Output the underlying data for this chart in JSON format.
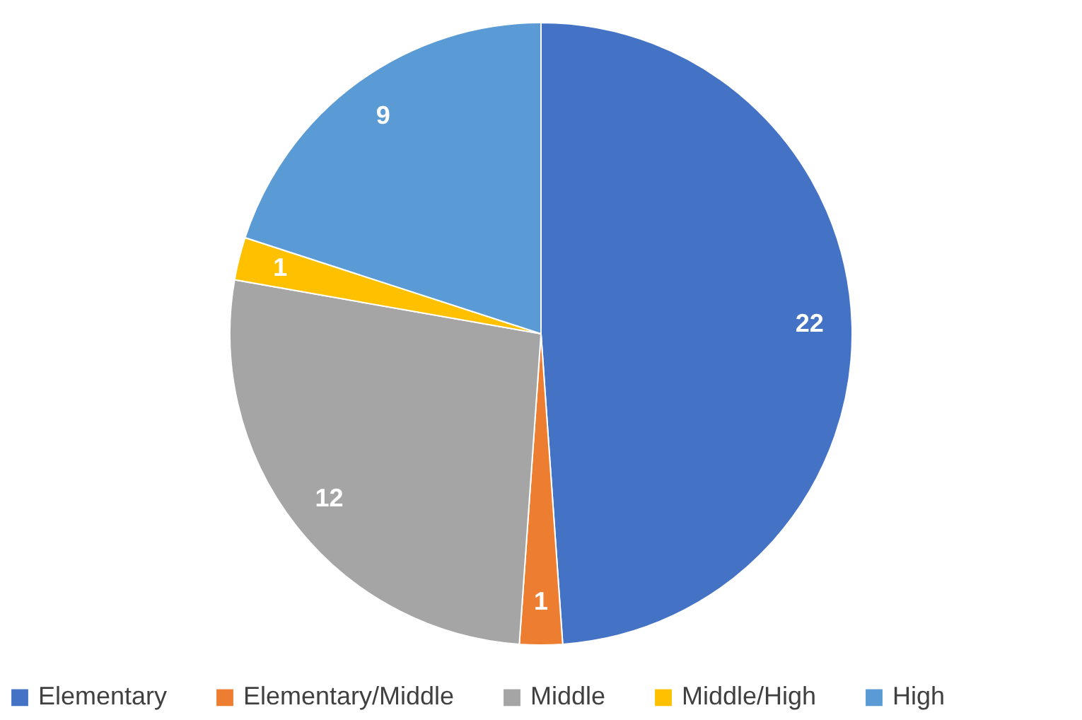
{
  "chart_data": {
    "type": "pie",
    "categories": [
      "Elementary",
      "Elementary/Middle",
      "Middle",
      "Middle/High",
      "High"
    ],
    "values": [
      22,
      1,
      12,
      1,
      9
    ],
    "colors": [
      "#4472c4",
      "#ed7d31",
      "#a5a5a5",
      "#ffc000",
      "#5b9bd5"
    ],
    "data_labels": true,
    "legend": "bottom"
  }
}
